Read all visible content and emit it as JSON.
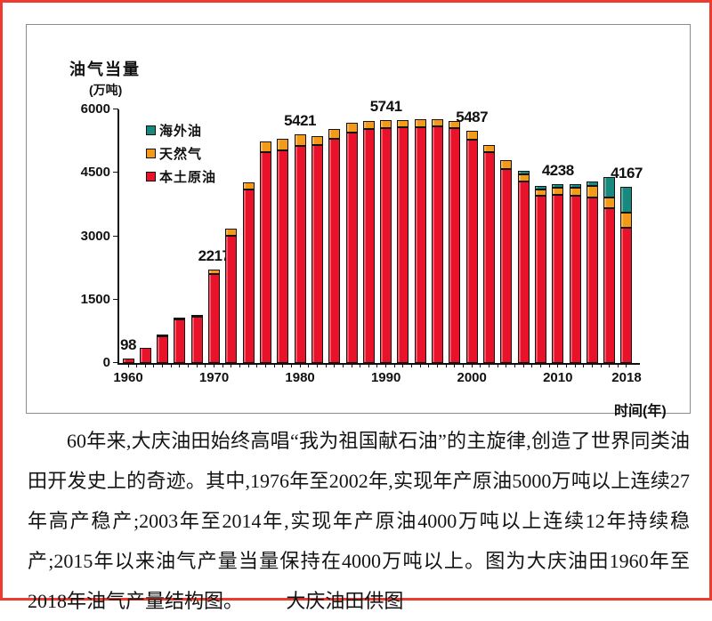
{
  "caption": {
    "text": "60年来,大庆油田始终高唱“我为祖国献石油”的主旋律,创造了世界同类油田开发史上的奇迹。其中,1976年至2002年,实现年产原油5000万吨以上连续27年高产稳产;2003年至2014年,实现年产原油4000万吨以上连续12年持续稳产;2015年以来油气产量当量保持在4000万吨以上。图为大庆油田1960年至2018年油气产量结构图。",
    "credit": "大庆油田供图"
  },
  "chart_data": {
    "type": "bar",
    "stacked": true,
    "title": "油气当量",
    "unit": "(万吨)",
    "xlabel": "时间(年)",
    "ylabel": "",
    "ylim": [
      0,
      6000
    ],
    "yticks": [
      0,
      1500,
      3000,
      4500,
      6000
    ],
    "xticks": [
      "1960",
      "1970",
      "1980",
      "1990",
      "2000",
      "2010",
      "2018"
    ],
    "grid": false,
    "legend_position": "top-left-inside",
    "frame_color": "#ee3b2e",
    "years": [
      1960,
      1962,
      1964,
      1966,
      1968,
      1970,
      1972,
      1974,
      1976,
      1978,
      1980,
      1982,
      1984,
      1986,
      1988,
      1990,
      1992,
      1994,
      1996,
      1998,
      2000,
      2002,
      2004,
      2006,
      2008,
      2010,
      2012,
      2014,
      2016,
      2018
    ],
    "legend": [
      {
        "key": "overseas-oil",
        "name": "海外油",
        "color": "#17897f"
      },
      {
        "key": "natural-gas",
        "name": "天然气",
        "color": "#f39a18"
      },
      {
        "key": "domestic-crude",
        "name": "本土原油",
        "color": "#e8122a"
      }
    ],
    "series": [
      {
        "key": "domestic-crude",
        "name": "本土原油",
        "color": "#e8122a",
        "values": [
          98,
          355,
          630,
          1040,
          1090,
          2110,
          3010,
          4100,
          5000,
          5030,
          5141,
          5150,
          5310,
          5455,
          5530,
          5561,
          5570,
          5580,
          5600,
          5560,
          5290,
          5000,
          4600,
          4285,
          3950,
          3980,
          3950,
          3910,
          3660,
          3204
        ]
      },
      {
        "key": "natural-gas",
        "name": "天然气",
        "color": "#f39a18",
        "values": [
          0,
          0,
          18,
          26,
          40,
          107,
          170,
          165,
          250,
          280,
          280,
          220,
          230,
          230,
          200,
          180,
          180,
          190,
          170,
          170,
          197,
          160,
          190,
          170,
          165,
          170,
          200,
          270,
          250,
          345
        ]
      },
      {
        "key": "overseas-oil",
        "name": "海外油",
        "color": "#17897f",
        "values": [
          0,
          0,
          0,
          0,
          0,
          0,
          0,
          0,
          0,
          0,
          0,
          0,
          0,
          0,
          0,
          0,
          0,
          0,
          0,
          0,
          0,
          0,
          0,
          85,
          85,
          88,
          85,
          125,
          480,
          618
        ]
      }
    ],
    "bar_labels": {
      "1960": "98",
      "1970": "2217",
      "1980": "5421",
      "1990": "5741",
      "2000": "5487",
      "2010": "4238",
      "2018": "4167"
    }
  }
}
